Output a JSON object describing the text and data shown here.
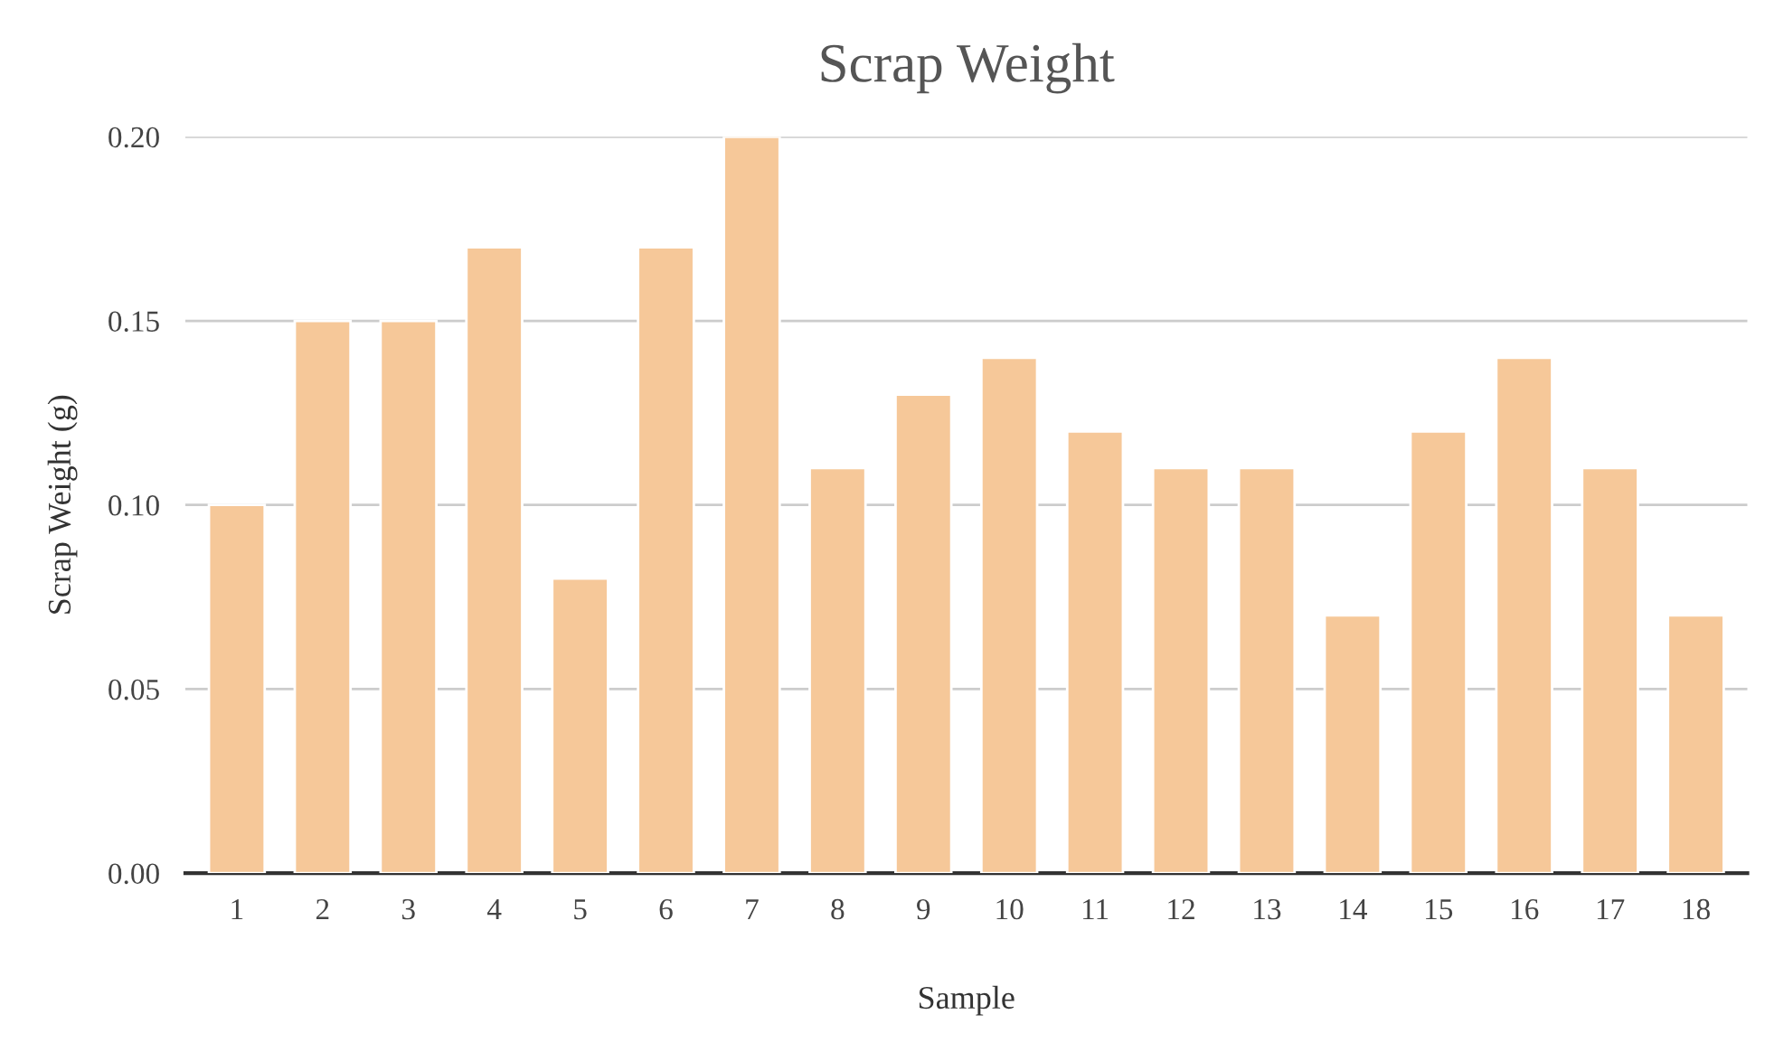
{
  "chart_data": {
    "type": "bar",
    "title": "Scrap Weight",
    "xlabel": "Sample",
    "ylabel": "Scrap Weight (g)",
    "categories": [
      "1",
      "2",
      "3",
      "4",
      "5",
      "6",
      "7",
      "8",
      "9",
      "10",
      "11",
      "12",
      "13",
      "14",
      "15",
      "16",
      "17",
      "18"
    ],
    "values": [
      0.1,
      0.15,
      0.15,
      0.17,
      0.08,
      0.17,
      0.2,
      0.11,
      0.13,
      0.14,
      0.12,
      0.11,
      0.11,
      0.07,
      0.12,
      0.14,
      0.11,
      0.07
    ],
    "color": "#f6c899",
    "ylim": [
      0,
      0.2
    ],
    "yticks": [
      {
        "value": 0,
        "label": "0.00"
      },
      {
        "value": 0.05,
        "label": "0.05"
      },
      {
        "value": 0.1,
        "label": "0.10"
      },
      {
        "value": 0.15,
        "label": "0.15"
      },
      {
        "value": 0.2,
        "label": "0.20"
      }
    ],
    "grid": "y",
    "legend": false
  }
}
